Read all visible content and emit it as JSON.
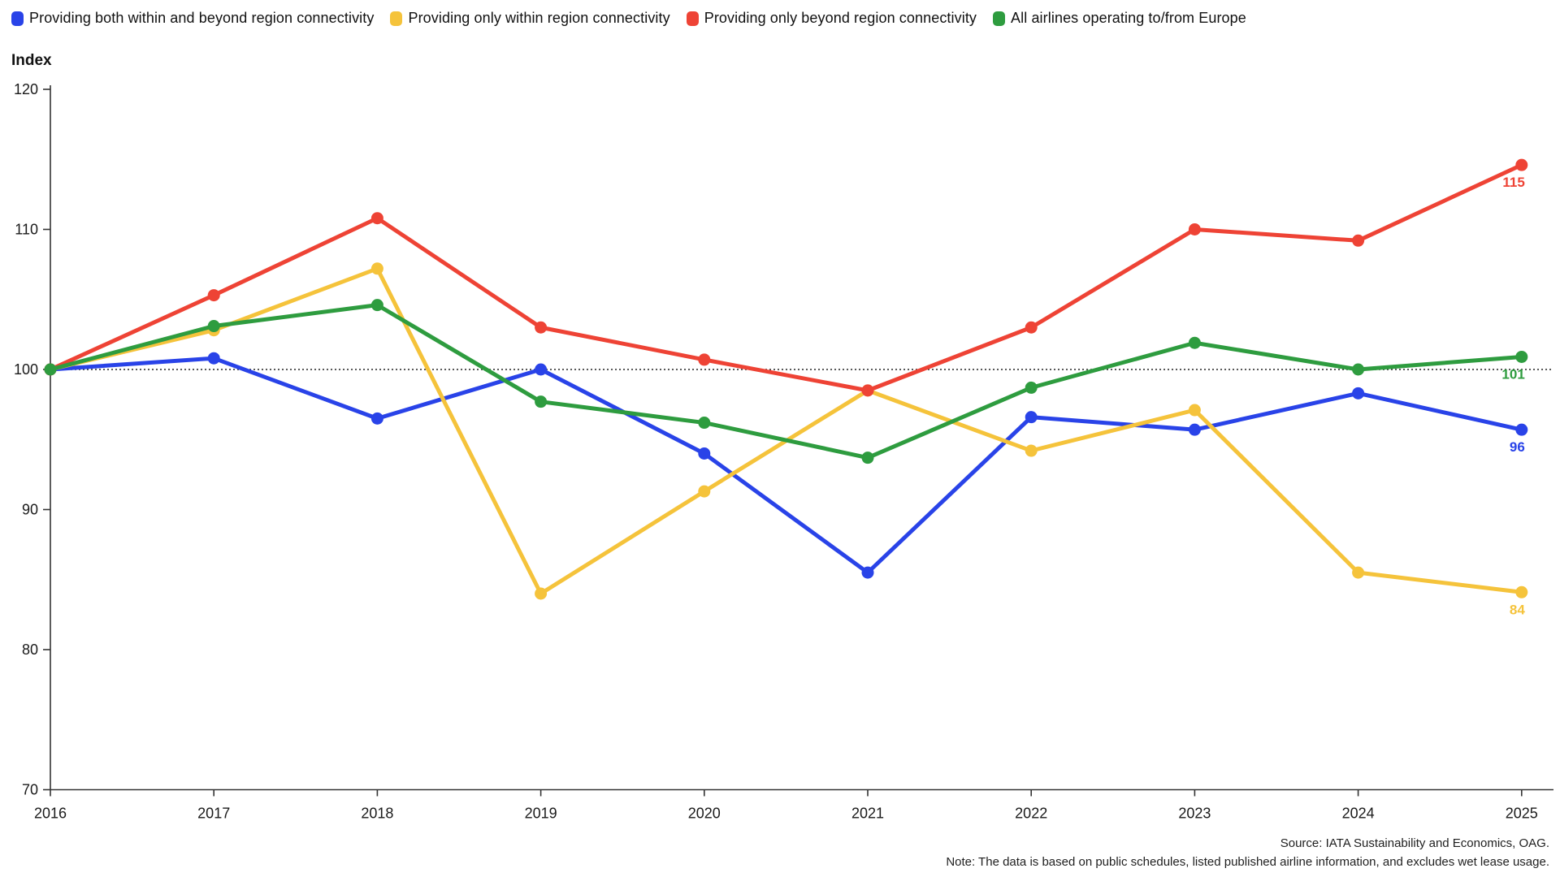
{
  "axis": {
    "y_title": "Index"
  },
  "chart_data": {
    "type": "line",
    "title": "",
    "xlabel": "",
    "ylabel": "Index",
    "categories": [
      2016,
      2017,
      2018,
      2019,
      2020,
      2021,
      2022,
      2023,
      2024,
      2025
    ],
    "ylim": [
      70,
      120
    ],
    "y_ticks": [
      120,
      110,
      100,
      90,
      80,
      70
    ],
    "reference_line": 100,
    "grid": false,
    "legend_position": "top",
    "series": [
      {
        "name": "Providing both within and beyond region connectivity",
        "color": "#2943e8",
        "values": [
          100,
          100.8,
          96.5,
          100,
          94,
          85.5,
          96.6,
          95.7,
          98.3,
          95.7
        ],
        "end_label": "96"
      },
      {
        "name": "Providing only within region connectivity",
        "color": "#f5c33b",
        "values": [
          100,
          102.8,
          107.2,
          84,
          91.3,
          98.5,
          94.2,
          97.1,
          85.5,
          84.1
        ],
        "end_label": "84"
      },
      {
        "name": "Providing only beyond region connectivity",
        "color": "#ee4335",
        "values": [
          100,
          105.3,
          110.8,
          103,
          100.7,
          98.5,
          103,
          110,
          109.2,
          114.6
        ],
        "end_label": "115"
      },
      {
        "name": "All airlines operating to/from Europe",
        "color": "#2e9c3f",
        "values": [
          100,
          103.1,
          104.6,
          97.7,
          96.2,
          93.7,
          98.7,
          101.9,
          100,
          100.9
        ],
        "end_label": "101"
      }
    ]
  },
  "footer": {
    "source": "Source: IATA Sustainability and Economics, OAG.",
    "note": "Note: The data is based on public schedules, listed published airline information, and excludes wet lease usage."
  }
}
